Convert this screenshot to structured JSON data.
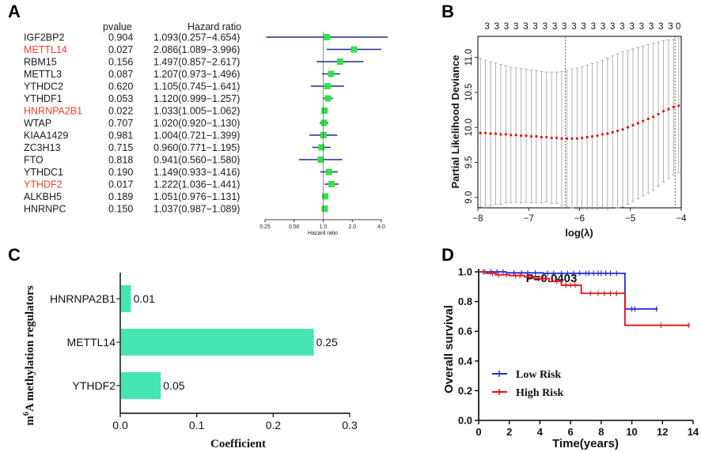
{
  "panels": {
    "a": "A",
    "b": "B",
    "c": "C",
    "d": "D"
  },
  "colors": {
    "highlight_text": "#e0452e",
    "forest_ci": "#1f2a8a",
    "forest_point": "#35e04a",
    "lasso_point": "#e01010",
    "lasso_err": "#a0a0a0",
    "bar": "#46e6b4",
    "low_risk": "#1e2bd6",
    "high_risk": "#e0101a"
  },
  "chart_data": [
    {
      "id": "A",
      "type": "forest",
      "header_pvalue": "pvalue",
      "header_hr": "Hazard ratio",
      "xlabel": "Hazard ratio",
      "xscale": "log",
      "xlim": [
        0.25,
        4.0
      ],
      "tick_labels": [
        "0.25",
        "0.50",
        "1.0",
        "2.0",
        "4.0"
      ],
      "tick_values": [
        0.25,
        0.5,
        1.0,
        2.0,
        4.0
      ],
      "rows": [
        {
          "gene": "IGF2BP2",
          "p": "0.904",
          "hr_text": "1.093(0.257−4.654)",
          "hr": 1.093,
          "lo": 0.257,
          "hi": 4.654,
          "highlight": false
        },
        {
          "gene": "METTL14",
          "p": "0.027",
          "hr_text": "2.086(1.089−3.996)",
          "hr": 2.086,
          "lo": 1.089,
          "hi": 3.996,
          "highlight": true
        },
        {
          "gene": "RBM15",
          "p": "0.156",
          "hr_text": "1.497(0.857−2.617)",
          "hr": 1.497,
          "lo": 0.857,
          "hi": 2.617,
          "highlight": false
        },
        {
          "gene": "METTL3",
          "p": "0.087",
          "hr_text": "1.207(0.973−1.496)",
          "hr": 1.207,
          "lo": 0.973,
          "hi": 1.496,
          "highlight": false
        },
        {
          "gene": "YTHDC2",
          "p": "0.620",
          "hr_text": "1.105(0.745−1.641)",
          "hr": 1.105,
          "lo": 0.745,
          "hi": 1.641,
          "highlight": false
        },
        {
          "gene": "YTHDF1",
          "p": "0.053",
          "hr_text": "1.120(0.999−1.257)",
          "hr": 1.12,
          "lo": 0.999,
          "hi": 1.257,
          "highlight": false
        },
        {
          "gene": "HNRNPA2B1",
          "p": "0.022",
          "hr_text": "1.033(1.005−1.062)",
          "hr": 1.033,
          "lo": 1.005,
          "hi": 1.062,
          "highlight": true
        },
        {
          "gene": "WTAP",
          "p": "0.707",
          "hr_text": "1.020(0.920−1.130)",
          "hr": 1.02,
          "lo": 0.92,
          "hi": 1.13,
          "highlight": false
        },
        {
          "gene": "KIAA1429",
          "p": "0.981",
          "hr_text": "1.004(0.721−1.399)",
          "hr": 1.004,
          "lo": 0.721,
          "hi": 1.399,
          "highlight": false
        },
        {
          "gene": "ZC3H13",
          "p": "0.715",
          "hr_text": "0.960(0.771−1.195)",
          "hr": 0.96,
          "lo": 0.771,
          "hi": 1.195,
          "highlight": false
        },
        {
          "gene": "FTO",
          "p": "0.818",
          "hr_text": "0.941(0.560−1.580)",
          "hr": 0.941,
          "lo": 0.56,
          "hi": 1.58,
          "highlight": false
        },
        {
          "gene": "YTHDC1",
          "p": "0.190",
          "hr_text": "1.149(0.933−1.416)",
          "hr": 1.149,
          "lo": 0.933,
          "hi": 1.416,
          "highlight": false
        },
        {
          "gene": "YTHDF2",
          "p": "0.017",
          "hr_text": "1.222(1.036−1.441)",
          "hr": 1.222,
          "lo": 1.036,
          "hi": 1.441,
          "highlight": true
        },
        {
          "gene": "ALKBH5",
          "p": "0.189",
          "hr_text": "1.051(0.976−1.131)",
          "hr": 1.051,
          "lo": 0.976,
          "hi": 1.131,
          "highlight": false
        },
        {
          "gene": "HNRNPC",
          "p": "0.150",
          "hr_text": "1.037(0.987−1.089)",
          "hr": 1.037,
          "lo": 0.987,
          "hi": 1.089,
          "highlight": false
        }
      ]
    },
    {
      "id": "B",
      "type": "scatter",
      "xlabel": "log(λ)",
      "ylabel": "Partial Likelihood Deviance",
      "xlim": [
        -8,
        -4
      ],
      "ylim": [
        8.85,
        11.3
      ],
      "xticks": [
        -8,
        -7,
        -6,
        -5,
        -4
      ],
      "xtick_labels": [
        "−8",
        "−7",
        "−6",
        "−5",
        "−4"
      ],
      "yticks": [
        9.0,
        9.5,
        10.0,
        10.5,
        11.0
      ],
      "ytick_labels": [
        "9.0",
        "9.5",
        "10.0",
        "10.5",
        "11.0"
      ],
      "top_labels": [
        "3",
        "3",
        "3",
        "3",
        "3",
        "3",
        "3",
        "3",
        "3",
        "3",
        "3",
        "3",
        "3",
        "3",
        "3",
        "3",
        "3",
        "3",
        "3",
        "3",
        "0"
      ],
      "top_label_x": [
        -7.82,
        -7.63,
        -7.44,
        -7.25,
        -7.06,
        -6.87,
        -6.68,
        -6.49,
        -6.3,
        -6.11,
        -5.92,
        -5.73,
        -5.54,
        -5.35,
        -5.16,
        -4.97,
        -4.78,
        -4.59,
        -4.4,
        -4.21,
        -4.06
      ],
      "vlines": [
        -6.28,
        -4.12
      ],
      "x": [
        -7.95,
        -7.85,
        -7.75,
        -7.65,
        -7.55,
        -7.45,
        -7.35,
        -7.25,
        -7.15,
        -7.05,
        -6.95,
        -6.85,
        -6.75,
        -6.65,
        -6.55,
        -6.45,
        -6.35,
        -6.25,
        -6.15,
        -6.05,
        -5.95,
        -5.85,
        -5.75,
        -5.65,
        -5.55,
        -5.45,
        -5.35,
        -5.25,
        -5.15,
        -5.05,
        -4.95,
        -4.85,
        -4.75,
        -4.65,
        -4.55,
        -4.45,
        -4.35,
        -4.25,
        -4.15,
        -4.05
      ],
      "y": [
        9.92,
        9.92,
        9.91,
        9.91,
        9.9,
        9.9,
        9.89,
        9.89,
        9.88,
        9.88,
        9.87,
        9.87,
        9.86,
        9.86,
        9.85,
        9.85,
        9.84,
        9.84,
        9.84,
        9.84,
        9.85,
        9.86,
        9.87,
        9.88,
        9.9,
        9.91,
        9.93,
        9.95,
        9.97,
        10.0,
        10.03,
        10.06,
        10.09,
        10.12,
        10.15,
        10.19,
        10.23,
        10.26,
        10.29,
        10.31
      ],
      "upper": [
        10.98,
        10.96,
        10.94,
        10.92,
        10.9,
        10.88,
        10.86,
        10.85,
        10.84,
        10.83,
        10.82,
        10.81,
        10.8,
        10.79,
        10.79,
        10.79,
        10.8,
        10.81,
        10.83,
        10.85,
        10.87,
        10.89,
        10.91,
        10.93,
        10.96,
        10.99,
        11.02,
        11.05,
        11.08,
        11.1,
        11.12,
        11.14,
        11.16,
        11.18,
        11.2,
        11.22,
        11.24,
        11.25,
        11.26,
        11.27
      ],
      "lower": [
        8.86,
        8.88,
        8.88,
        8.9,
        8.9,
        8.92,
        8.92,
        8.93,
        8.92,
        8.93,
        8.92,
        8.93,
        8.92,
        8.93,
        8.91,
        8.91,
        8.88,
        8.87,
        8.85,
        8.83,
        8.83,
        8.83,
        8.83,
        8.83,
        8.84,
        8.83,
        8.84,
        8.85,
        8.86,
        8.9,
        8.94,
        8.98,
        9.02,
        9.06,
        9.1,
        9.16,
        9.22,
        9.27,
        9.32,
        9.35
      ]
    },
    {
      "id": "C",
      "type": "bar",
      "orientation": "horizontal",
      "categories": [
        "HNRNPA2B1",
        "METTL14",
        "YTHDF2"
      ],
      "values": [
        0.013,
        0.252,
        0.052
      ],
      "value_labels": [
        "0.01",
        "0.25",
        "0.05"
      ],
      "xlabel": "Coefficient",
      "ylabel_pre": "m",
      "ylabel_sup": "6",
      "ylabel_post": "A methylation regulators",
      "xlim": [
        0,
        0.3
      ],
      "xticks": [
        0.0,
        0.1,
        0.2,
        0.3
      ],
      "xtick_labels": [
        "0.0",
        "0.1",
        "0.2",
        "0.3"
      ]
    },
    {
      "id": "D",
      "type": "line",
      "title": "P=0.0403",
      "xlabel": "Time(years)",
      "ylabel": "Overall survival",
      "xlim": [
        0,
        14
      ],
      "ylim": [
        0,
        1.0
      ],
      "xticks": [
        0,
        2,
        4,
        6,
        8,
        10,
        12,
        14
      ],
      "xtick_labels": [
        "0",
        "2",
        "4",
        "6",
        "8",
        "10",
        "12",
        "14"
      ],
      "yticks": [
        0.0,
        0.2,
        0.4,
        0.6,
        0.8,
        1.0
      ],
      "ytick_labels": [
        "0.0",
        "0.2",
        "0.4",
        "0.6",
        "0.8",
        "1.0"
      ],
      "series": [
        {
          "name": "Low Risk",
          "steps": [
            [
              0,
              1.0
            ],
            [
              1.8,
              0.993
            ],
            [
              4.2,
              0.99
            ],
            [
              9.5,
              0.99
            ],
            [
              9.55,
              0.75
            ],
            [
              11.7,
              0.75
            ]
          ],
          "censors": [
            0.3,
            0.8,
            1.2,
            1.6,
            2.3,
            2.8,
            3.2,
            3.7,
            4.5,
            4.9,
            5.4,
            5.8,
            6.2,
            6.6,
            7.0,
            7.2,
            7.5,
            7.8,
            8.0,
            8.3,
            8.6,
            9.0,
            10.0,
            10.2,
            11.6
          ]
        },
        {
          "name": "High Risk",
          "steps": [
            [
              0,
              1.0
            ],
            [
              0.5,
              0.99
            ],
            [
              1.1,
              0.98
            ],
            [
              2.0,
              0.975
            ],
            [
              3.0,
              0.965
            ],
            [
              3.6,
              0.955
            ],
            [
              4.6,
              0.935
            ],
            [
              5.4,
              0.91
            ],
            [
              6.7,
              0.855
            ],
            [
              9.5,
              0.855
            ],
            [
              9.55,
              0.64
            ],
            [
              13.8,
              0.64
            ]
          ],
          "censors": [
            0.4,
            0.9,
            1.3,
            1.8,
            2.4,
            2.7,
            3.3,
            3.9,
            4.2,
            5.1,
            5.7,
            6.0,
            6.3,
            7.3,
            7.8,
            8.2,
            8.6,
            9.0,
            11.9,
            13.7
          ]
        }
      ]
    }
  ]
}
